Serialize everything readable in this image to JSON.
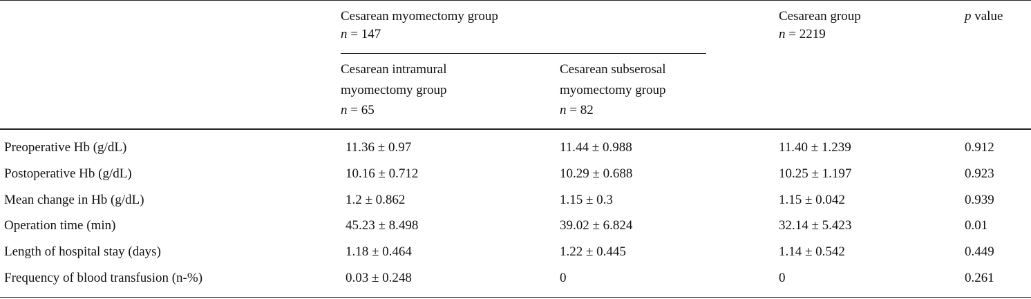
{
  "table": {
    "header": {
      "group1": {
        "title": "Cesarean myomectomy group",
        "n": "n = 147",
        "subgroups": [
          {
            "lines": [
              "Cesarean intramural",
              "myomectomy group"
            ],
            "n": "n = 65"
          },
          {
            "lines": [
              "Cesarean subserosal",
              "myomectomy group"
            ],
            "n": "n = 82"
          }
        ]
      },
      "group2": {
        "title": "Cesarean group",
        "n": "n = 2219"
      },
      "pvalue": "p value"
    },
    "rows": [
      {
        "label": "Preoperative Hb (g/dL)",
        "cells": [
          "11.36 ± 0.97",
          "11.44 ± 0.988",
          "11.40 ± 1.239",
          "0.912"
        ]
      },
      {
        "label": "Postoperative Hb (g/dL)",
        "cells": [
          "10.16 ± 0.712",
          "10.29 ± 0.688",
          "10.25 ± 1.197",
          "0.923"
        ]
      },
      {
        "label": "Mean change in Hb (g/dL)",
        "cells": [
          "1.2 ± 0.862",
          "1.15 ± 0.3",
          "1.15 ± 0.042",
          "0.939"
        ]
      },
      {
        "label": "Operation time (min)",
        "cells": [
          "45.23 ± 8.498",
          "39.02 ± 6.824",
          "32.14 ± 5.423",
          "0.01"
        ]
      },
      {
        "label": "Length of hospital stay (days)",
        "cells": [
          "1.18 ± 0.464",
          "1.22 ± 0.445",
          "1.14 ± 0.542",
          "0.449"
        ]
      },
      {
        "label": "Frequency of blood transfusion (n-%)",
        "cells": [
          "0.03 ± 0.248",
          "0",
          "0",
          "0.261"
        ]
      }
    ]
  }
}
